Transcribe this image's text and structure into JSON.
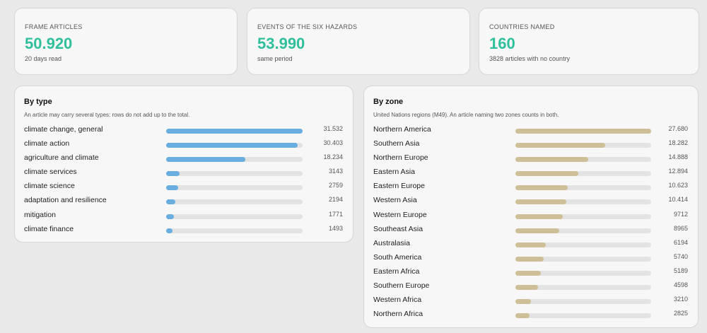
{
  "stats": [
    {
      "label": "FRAME ARTICLES",
      "value": "50.920",
      "sub": "20 days read"
    },
    {
      "label": "EVENTS OF THE SIX HAZARDS",
      "value": "53.990",
      "sub": "same period"
    },
    {
      "label": "COUNTRIES NAMED",
      "value": "160",
      "sub": "3828 articles with no country"
    }
  ],
  "by_type": {
    "title": "By type",
    "note": "An article may carry several types: rows do not add up to the total.",
    "rows": [
      {
        "label": "climate change, general",
        "display": "31.532",
        "value": 31532
      },
      {
        "label": "climate action",
        "display": "30.403",
        "value": 30403
      },
      {
        "label": "agriculture and climate",
        "display": "18.234",
        "value": 18234
      },
      {
        "label": "climate services",
        "display": "3143",
        "value": 3143
      },
      {
        "label": "climate science",
        "display": "2759",
        "value": 2759
      },
      {
        "label": "adaptation and resilience",
        "display": "2194",
        "value": 2194
      },
      {
        "label": "mitigation",
        "display": "1771",
        "value": 1771
      },
      {
        "label": "climate finance",
        "display": "1493",
        "value": 1493
      }
    ]
  },
  "by_zone": {
    "title": "By zone",
    "note": "United Nations regions (M49). An article naming two zones counts in both.",
    "rows": [
      {
        "label": "Northern America",
        "display": "27.680",
        "value": 27680
      },
      {
        "label": "Southern Asia",
        "display": "18.282",
        "value": 18282
      },
      {
        "label": "Northern Europe",
        "display": "14.888",
        "value": 14888
      },
      {
        "label": "Eastern Asia",
        "display": "12.894",
        "value": 12894
      },
      {
        "label": "Eastern Europe",
        "display": "10.623",
        "value": 10623
      },
      {
        "label": "Western Asia",
        "display": "10.414",
        "value": 10414
      },
      {
        "label": "Western Europe",
        "display": "9712",
        "value": 9712
      },
      {
        "label": "Southeast Asia",
        "display": "8965",
        "value": 8965
      },
      {
        "label": "Australasia",
        "display": "6194",
        "value": 6194
      },
      {
        "label": "South America",
        "display": "5740",
        "value": 5740
      },
      {
        "label": "Eastern Africa",
        "display": "5189",
        "value": 5189
      },
      {
        "label": "Southern Europe",
        "display": "4598",
        "value": 4598
      },
      {
        "label": "Western Africa",
        "display": "3210",
        "value": 3210
      },
      {
        "label": "Northern Africa",
        "display": "2825",
        "value": 2825
      }
    ]
  },
  "colors": {
    "stat_value": "#2fbf9b",
    "type_bar": "#6aaee0",
    "zone_bar": "#cfbf98",
    "track": "#e3e3e3"
  }
}
